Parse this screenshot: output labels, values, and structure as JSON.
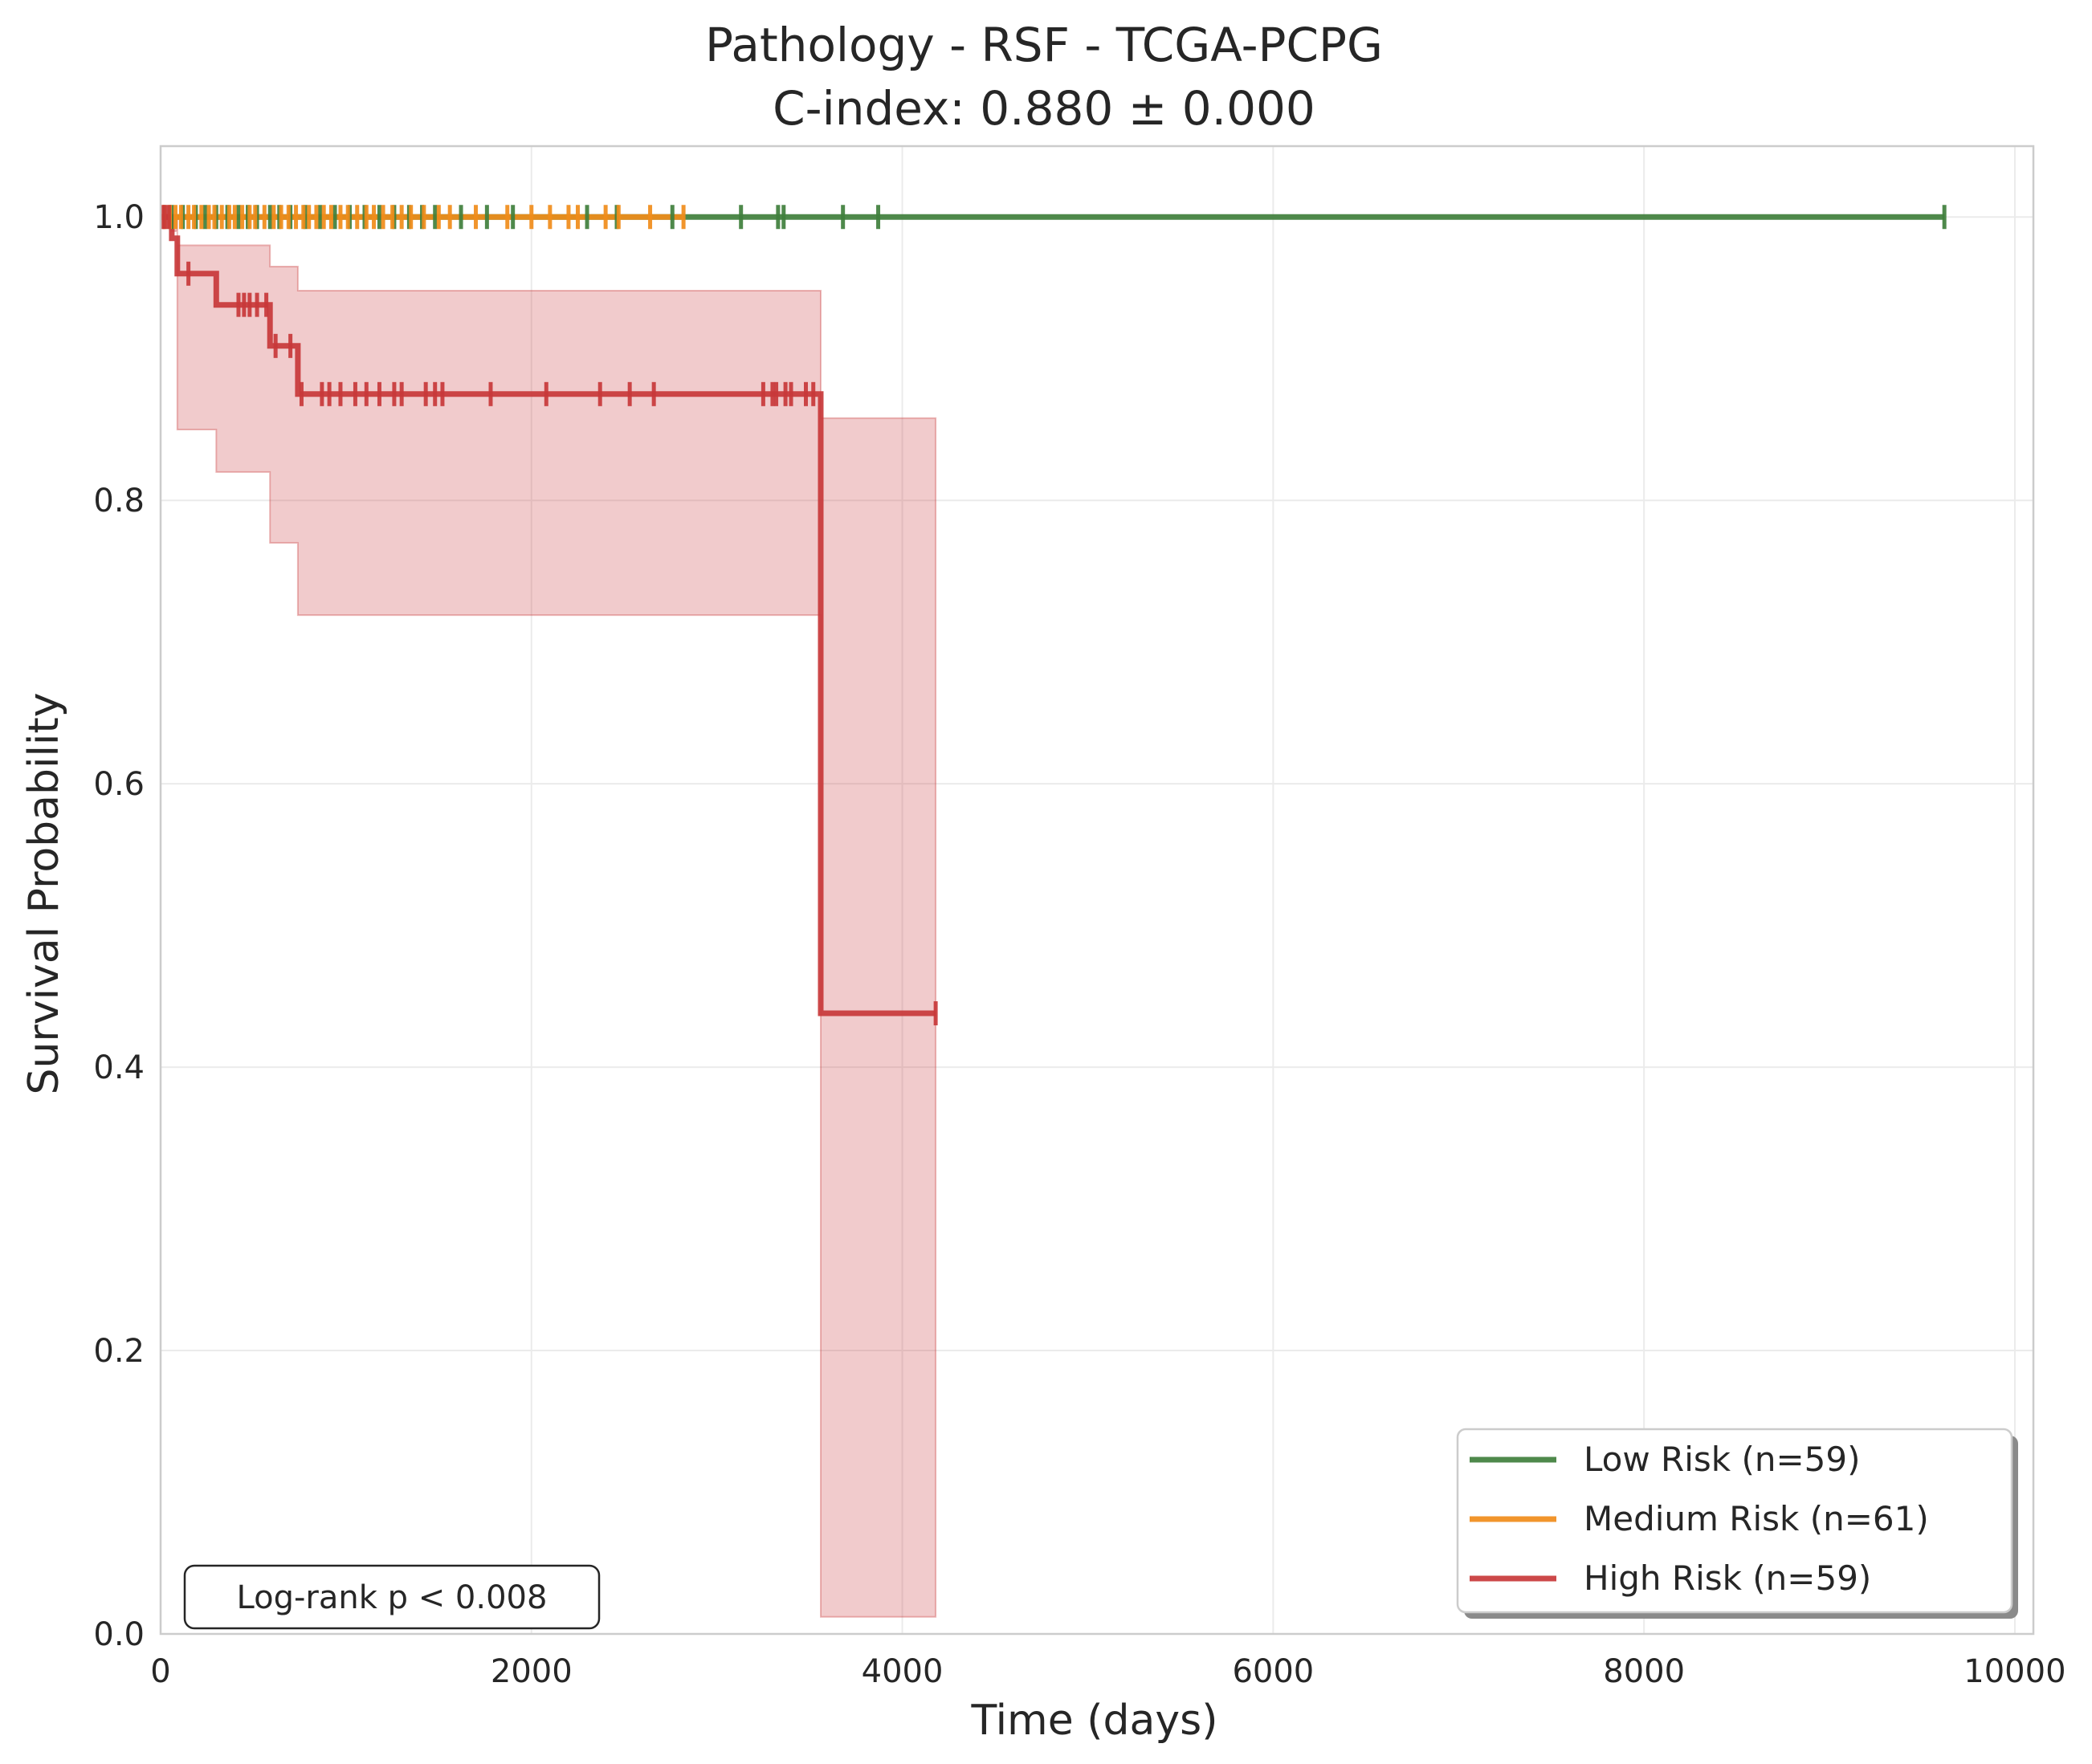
{
  "chart_data": {
    "type": "line",
    "subtype": "kaplan-meier step curves with confidence bands and censor ticks",
    "title": "Pathology - RSF - TCGA-PCPG",
    "subtitle": "C-index: 0.880 ± 0.000",
    "xlabel": "Time (days)",
    "ylabel": "Survival Probability",
    "xlim": [
      0,
      10100
    ],
    "ylim": [
      0,
      1.05
    ],
    "xticks": [
      0,
      2000,
      4000,
      6000,
      8000,
      10000
    ],
    "xtick_labels": [
      "0",
      "2000",
      "4000",
      "6000",
      "8000",
      "10000"
    ],
    "yticks": [
      0.0,
      0.2,
      0.4,
      0.6,
      0.8,
      1.0
    ],
    "ytick_labels": [
      "0.0",
      "0.2",
      "0.4",
      "0.6",
      "0.8",
      "1.0"
    ],
    "grid": true,
    "legend_position": "lower-right",
    "annotation": "Log-rank p < 0.008",
    "series": [
      {
        "name": "Low Risk (n=59)",
        "color": "#3f7f3c",
        "steps": [
          [
            0,
            1.0
          ],
          [
            9620,
            1.0
          ]
        ],
        "censored": [
          60,
          120,
          190,
          240,
          300,
          360,
          420,
          470,
          520,
          590,
          640,
          700,
          780,
          860,
          940,
          1020,
          1100,
          1180,
          1260,
          1340,
          1410,
          1480,
          1620,
          1760,
          1900,
          2300,
          2460,
          2760,
          3130,
          3330,
          3360,
          3680,
          3870,
          9620
        ]
      },
      {
        "name": "Medium Risk (n=61)",
        "color": "#f08c1a",
        "steps": [
          [
            0,
            1.0
          ],
          [
            2820,
            1.0
          ]
        ],
        "censored": [
          20,
          50,
          80,
          110,
          150,
          180,
          220,
          260,
          290,
          330,
          370,
          400,
          440,
          480,
          510,
          560,
          610,
          650,
          690,
          730,
          770,
          800,
          840,
          880,
          920,
          970,
          1010,
          1060,
          1110,
          1150,
          1200,
          1250,
          1300,
          1350,
          1420,
          1500,
          1560,
          1700,
          1870,
          2000,
          2100,
          2200,
          2250,
          2400,
          2470,
          2640,
          2820
        ]
      },
      {
        "name": "High Risk (n=59)",
        "color": "#c8383a",
        "steps": [
          [
            0,
            1.0
          ],
          [
            60,
            1.0
          ],
          [
            60,
            0.985
          ],
          [
            90,
            0.985
          ],
          [
            90,
            0.96
          ],
          [
            300,
            0.96
          ],
          [
            300,
            0.938
          ],
          [
            590,
            0.938
          ],
          [
            590,
            0.909
          ],
          [
            740,
            0.909
          ],
          [
            740,
            0.875
          ],
          [
            3560,
            0.875
          ],
          [
            3560,
            0.438
          ],
          [
            4180,
            0.438
          ]
        ],
        "censored": [
          10,
          25,
          45,
          150,
          420,
          450,
          480,
          520,
          570,
          620,
          700,
          760,
          870,
          910,
          970,
          1050,
          1110,
          1180,
          1260,
          1300,
          1430,
          1480,
          1520,
          1780,
          2080,
          2370,
          2530,
          2660,
          3250,
          3300,
          3320,
          3370,
          3400,
          3480,
          3520,
          4180
        ],
        "ci_lower": [
          [
            60,
            0.99
          ],
          [
            90,
            0.85
          ],
          [
            300,
            0.82
          ],
          [
            590,
            0.77
          ],
          [
            740,
            0.719
          ],
          [
            3560,
            0.012
          ],
          [
            4180,
            0.012
          ]
        ],
        "ci_upper": [
          [
            60,
            1.0
          ],
          [
            90,
            0.98
          ],
          [
            590,
            0.965
          ],
          [
            740,
            0.948
          ],
          [
            3560,
            0.858
          ],
          [
            4180,
            0.858
          ]
        ]
      }
    ]
  }
}
